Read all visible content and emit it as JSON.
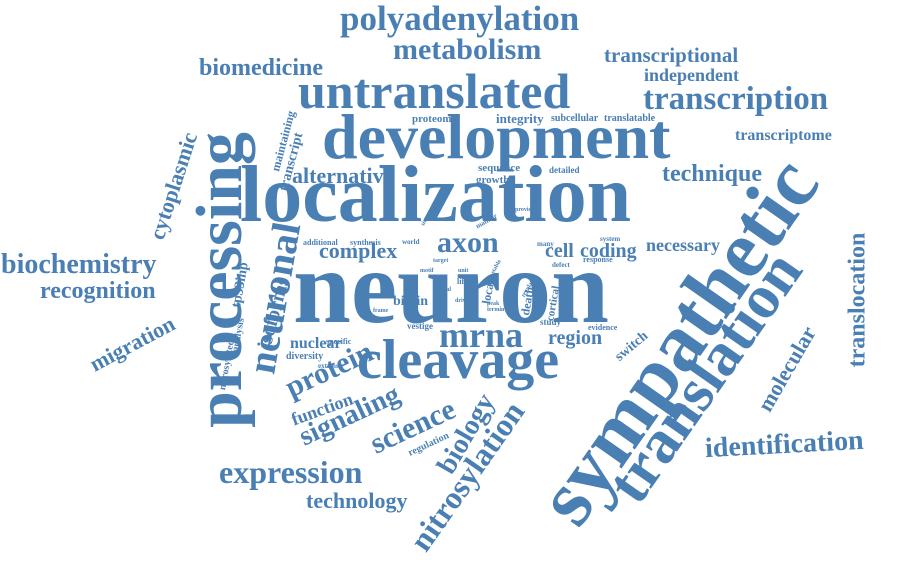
{
  "cloud": {
    "color": "#4a7fb4",
    "words": {
      "neuron": "neuron",
      "localization": "localization",
      "sympathetic": "sympathetic",
      "development": "development",
      "processing": "processing",
      "untranslated": "untranslated",
      "translation": "translation",
      "cleavage": "cleavage",
      "polyadenylation": "polyadenylation",
      "metabolism": "metabolism",
      "transcription": "transcription",
      "neuronal": "neuronal",
      "mrna": "mrna",
      "axon": "axon",
      "expression": "expression",
      "nitrosylation": "nitrosylation",
      "identification": "identification",
      "biochemistry": "biochemistry",
      "recognition": "recognition",
      "biomedicine": "biomedicine",
      "transcriptional": "transcriptional",
      "independent": "independent",
      "translocation": "translocation",
      "technique": "technique",
      "alternative": "alternative",
      "complex": "complex",
      "protein": "protein",
      "signaling": "signaling",
      "science": "science",
      "biology": "biology",
      "technology": "technology",
      "migration": "migration",
      "cytoplasmic": "cytoplasmic",
      "isoforms": "isoforms",
      "molecular": "molecular",
      "region": "region",
      "necessary": "necessary",
      "cell": "cell",
      "coding": "coding",
      "transcriptome": "transcriptome",
      "function": "function",
      "nuclear": "nuclear",
      "tp53inp": "tp53inp",
      "biotin": "biotin",
      "integrity": "integrity",
      "proteomic": "proteomic",
      "subcellular": "subcellular",
      "translatable": "translatable",
      "sequence": "sequence",
      "growth": "growth",
      "detailed": "detailed",
      "maintaining": "maintaining",
      "transcript": "transcript",
      "switch": "switch",
      "regulation": "regulation",
      "additional": "additional",
      "synthesis": "synthesis",
      "world": "world",
      "many": "many",
      "system": "system",
      "response": "response",
      "defect": "defect",
      "cortical": "cortical",
      "local": "local",
      "axonal": "axonal",
      "death": "death",
      "study": "study",
      "evidence": "evidence",
      "vestige": "vestige",
      "specific": "specific",
      "diversity": "diversity",
      "extrinsic": "extrinsic",
      "nitrosylated": "nitrosylated",
      "analysis": "analysis",
      "manner": "manner",
      "provide": "provide",
      "target": "target",
      "life": "life",
      "signal": "signal",
      "motif": "motif",
      "peak": "peak",
      "regulate": "regulate",
      "termin": "termin",
      "drive": "drive",
      "frame": "frame",
      "unit": "unit",
      "stable": "stable",
      "sites": "sites"
    }
  }
}
